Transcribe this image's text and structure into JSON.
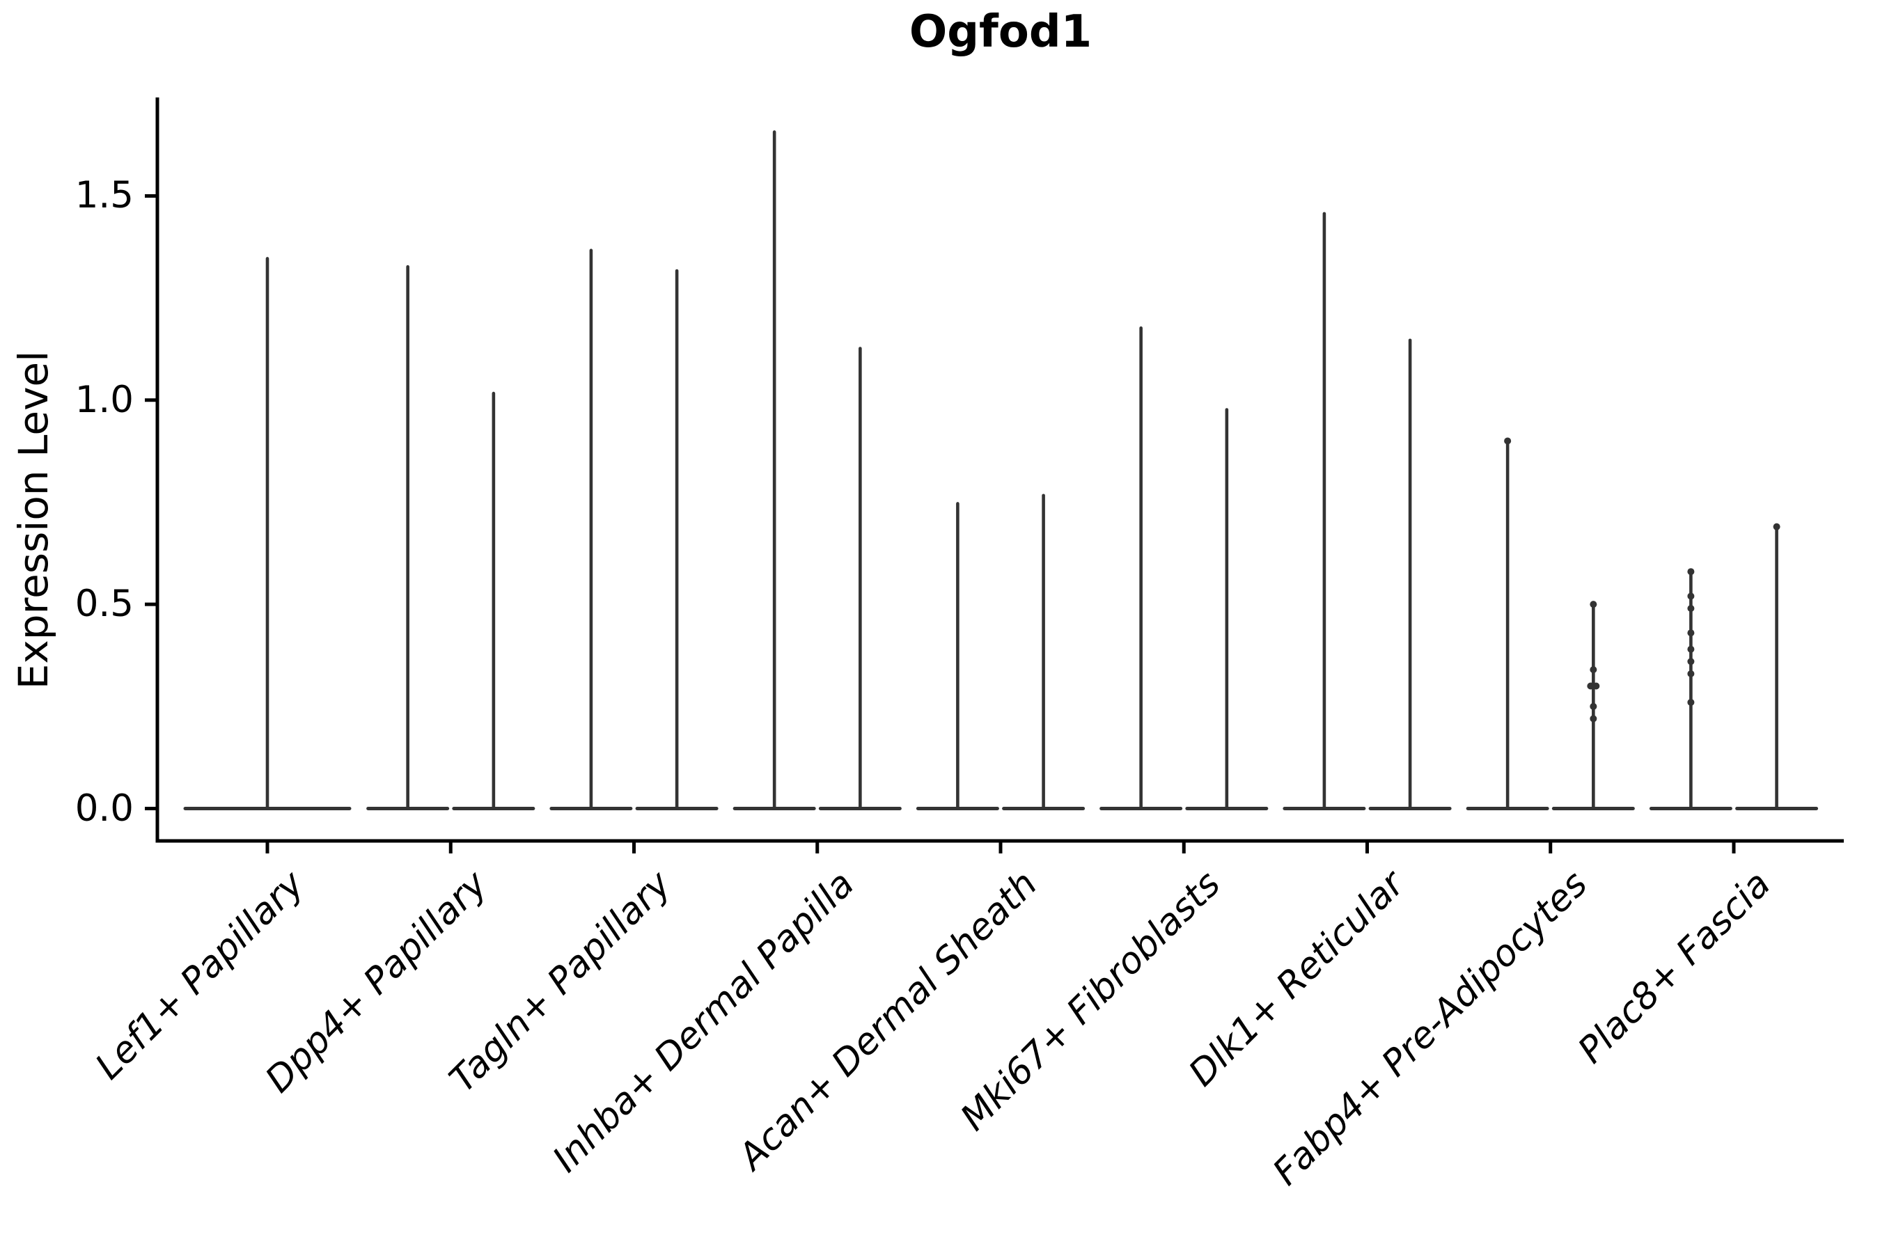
{
  "figure": {
    "background": "#ffffff"
  },
  "chart_data": {
    "type": "violin",
    "title": "Ogfod1",
    "xlabel": "",
    "ylabel": "Expression Level",
    "ytick_labels": [
      "1.5",
      "1.0",
      "0.5",
      "0.0"
    ],
    "yticks": [
      1.5,
      1.0,
      0.5,
      0.0
    ],
    "ylim": [
      -0.08,
      1.74
    ],
    "grid": false,
    "legend": "none",
    "x_label_rotation_deg": 45,
    "categories": [
      "Lef1+ Papillary",
      "Dpp4+ Papillary",
      "Tagln+ Papillary",
      "Inhba+ Dermal Papilla",
      "Acan+ Dermal Sheath",
      "Mki67+ Fibroblasts",
      "Dlk1+ Reticular",
      "Fabp4+ Pre-Adipocytes",
      "Plac8+ Fascia"
    ],
    "violins": [
      {
        "category_index": 0,
        "category": "Lef1+ Papillary",
        "group": 1,
        "slot": "full",
        "max": 1.35,
        "points": []
      },
      {
        "category_index": 1,
        "category": "Dpp4+ Papillary",
        "group": 1,
        "slot": "left",
        "max": 1.33,
        "points": []
      },
      {
        "category_index": 1,
        "category": "Dpp4+ Papillary",
        "group": 2,
        "slot": "right",
        "max": 1.02,
        "points": []
      },
      {
        "category_index": 2,
        "category": "Tagln+ Papillary",
        "group": 1,
        "slot": "left",
        "max": 1.37,
        "points": []
      },
      {
        "category_index": 2,
        "category": "Tagln+ Papillary",
        "group": 2,
        "slot": "right",
        "max": 1.32,
        "points": []
      },
      {
        "category_index": 3,
        "category": "Inhba+ Dermal Papilla",
        "group": 1,
        "slot": "left",
        "max": 1.66,
        "points": []
      },
      {
        "category_index": 3,
        "category": "Inhba+ Dermal Papilla",
        "group": 2,
        "slot": "right",
        "max": 1.13,
        "points": []
      },
      {
        "category_index": 4,
        "category": "Acan+ Dermal Sheath",
        "group": 1,
        "slot": "left",
        "max": 0.75,
        "points": []
      },
      {
        "category_index": 4,
        "category": "Acan+ Dermal Sheath",
        "group": 2,
        "slot": "right",
        "max": 0.77,
        "points": []
      },
      {
        "category_index": 5,
        "category": "Mki67+ Fibroblasts",
        "group": 1,
        "slot": "left",
        "max": 1.18,
        "points": []
      },
      {
        "category_index": 5,
        "category": "Mki67+ Fibroblasts",
        "group": 2,
        "slot": "right",
        "max": 0.98,
        "points": []
      },
      {
        "category_index": 6,
        "category": "Dlk1+ Reticular",
        "group": 1,
        "slot": "left",
        "max": 1.46,
        "points": []
      },
      {
        "category_index": 6,
        "category": "Dlk1+ Reticular",
        "group": 2,
        "slot": "right",
        "max": 1.15,
        "points": []
      },
      {
        "category_index": 7,
        "category": "Fabp4+ Pre-Adipocytes",
        "group": 1,
        "slot": "left",
        "max": 0.9,
        "points": [
          [
            0.9,
            0
          ]
        ]
      },
      {
        "category_index": 7,
        "category": "Fabp4+ Pre-Adipocytes",
        "group": 2,
        "slot": "right",
        "max": 0.5,
        "points": [
          [
            0.5,
            0
          ],
          [
            0.34,
            0
          ],
          [
            0.3,
            4
          ],
          [
            0.3,
            -4
          ],
          [
            0.25,
            0
          ],
          [
            0.22,
            0
          ]
        ]
      },
      {
        "category_index": 8,
        "category": "Plac8+ Fascia",
        "group": 1,
        "slot": "left",
        "max": 0.58,
        "points": [
          [
            0.58,
            0
          ],
          [
            0.52,
            0
          ],
          [
            0.49,
            0
          ],
          [
            0.43,
            0
          ],
          [
            0.39,
            0
          ],
          [
            0.36,
            0
          ],
          [
            0.33,
            0
          ],
          [
            0.26,
            0
          ]
        ]
      },
      {
        "category_index": 8,
        "category": "Plac8+ Fascia",
        "group": 2,
        "slot": "right",
        "max": 0.69,
        "points": [
          [
            0.69,
            0
          ]
        ]
      }
    ],
    "colors": {
      "violin": "#333333",
      "axis": "#000000",
      "text": "#000000",
      "point": "#333333",
      "background": "#ffffff"
    }
  }
}
